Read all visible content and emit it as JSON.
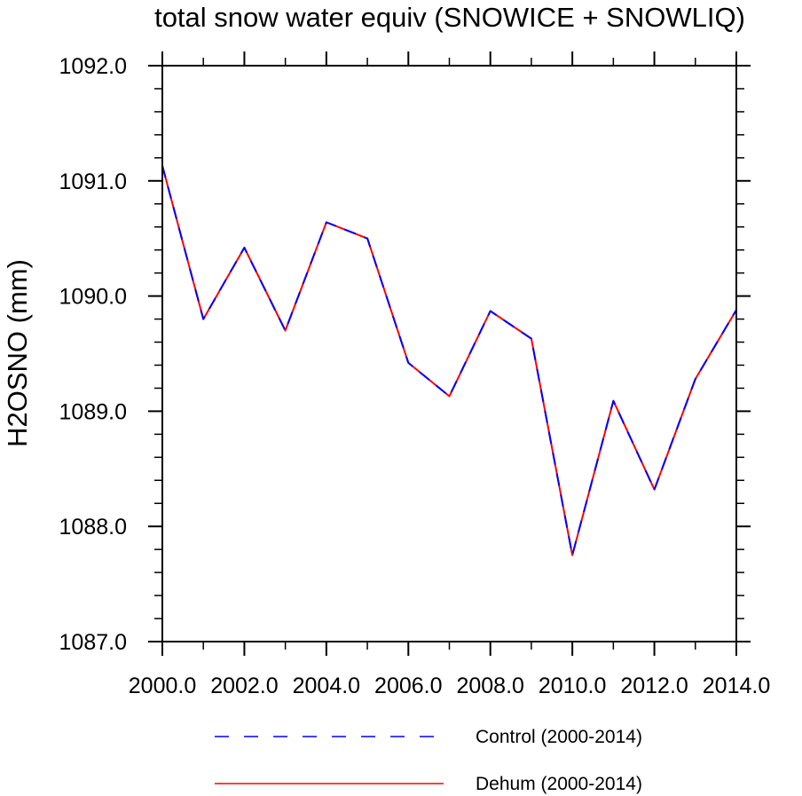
{
  "chart_data": {
    "type": "line",
    "title": "total snow water equiv (SNOWICE + SNOWLIQ)",
    "xlabel": "",
    "ylabel": "H2OSNO  (mm)",
    "xlim": [
      2000,
      2014
    ],
    "ylim": [
      1087,
      1092
    ],
    "x_ticks": [
      2000,
      2002,
      2004,
      2006,
      2008,
      2010,
      2012,
      2014
    ],
    "x_tick_labels": [
      "2000.0",
      "2002.0",
      "2004.0",
      "2006.0",
      "2008.0",
      "2010.0",
      "2012.0",
      "2014.0"
    ],
    "y_ticks": [
      1087,
      1088,
      1089,
      1090,
      1091,
      1092
    ],
    "y_tick_labels": [
      "1087.0",
      "1088.0",
      "1089.0",
      "1090.0",
      "1091.0",
      "1092.0"
    ],
    "grid": false,
    "legend_position": "bottom-center",
    "x": [
      2000,
      2001,
      2002,
      2003,
      2004,
      2005,
      2006,
      2007,
      2008,
      2009,
      2010,
      2011,
      2012,
      2013,
      2014
    ],
    "series": [
      {
        "name": "Control (2000-2014)",
        "color": "#0000ff",
        "style": "dashed",
        "values": [
          1091.13,
          1089.8,
          1090.42,
          1089.7,
          1090.64,
          1090.5,
          1089.42,
          1089.13,
          1089.87,
          1089.63,
          1087.75,
          1089.09,
          1088.32,
          1089.28,
          1089.88
        ]
      },
      {
        "name": "Dehum (2000-2014)",
        "color": "#ff0000",
        "style": "solid",
        "values": [
          1091.13,
          1089.8,
          1090.42,
          1089.7,
          1090.64,
          1090.5,
          1089.42,
          1089.13,
          1089.87,
          1089.63,
          1087.75,
          1089.09,
          1088.32,
          1089.28,
          1089.88
        ]
      }
    ]
  }
}
